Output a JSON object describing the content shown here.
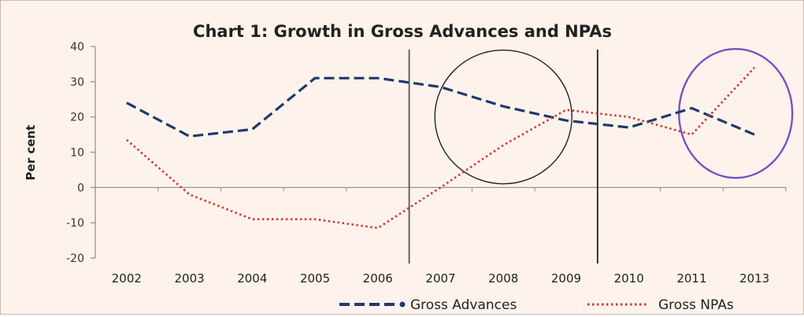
{
  "chart_data": {
    "type": "line",
    "title": "Chart 1: Growth in Gross Advances and NPAs",
    "xlabel": "",
    "ylabel": "Per cent",
    "categories": [
      "2002",
      "2003",
      "2004",
      "2005",
      "2006",
      "2007",
      "2008",
      "2009",
      "2010",
      "2011",
      "2013"
    ],
    "ylim": [
      -20,
      40
    ],
    "yticks": [
      "40",
      "30",
      "20",
      "10",
      "0",
      "-10",
      "-20"
    ],
    "grid": false,
    "legend_position": "bottom-right",
    "series": [
      {
        "name": "Gross Advances",
        "style": "dashed",
        "color": "#1f3a6b",
        "values": [
          24,
          14.5,
          16.5,
          31,
          31,
          28.5,
          23,
          19,
          17,
          22.5,
          15
        ]
      },
      {
        "name": "Gross NPAs",
        "style": "dotted",
        "color": "#d9342b",
        "values": [
          13.5,
          -2,
          -9,
          -9,
          -11.5,
          0,
          12,
          22,
          20,
          15,
          34
        ]
      }
    ],
    "annotations": {
      "vertical_lines": [
        {
          "after_category_index": 4,
          "color": "#555555"
        },
        {
          "after_category_index": 7,
          "color": "#222222"
        }
      ],
      "ellipses": [
        {
          "center_index": 6,
          "center_y": 20,
          "color": "#222222"
        },
        {
          "center_index": 9.7,
          "center_y": 21,
          "color": "#7b4fc4"
        }
      ]
    }
  }
}
